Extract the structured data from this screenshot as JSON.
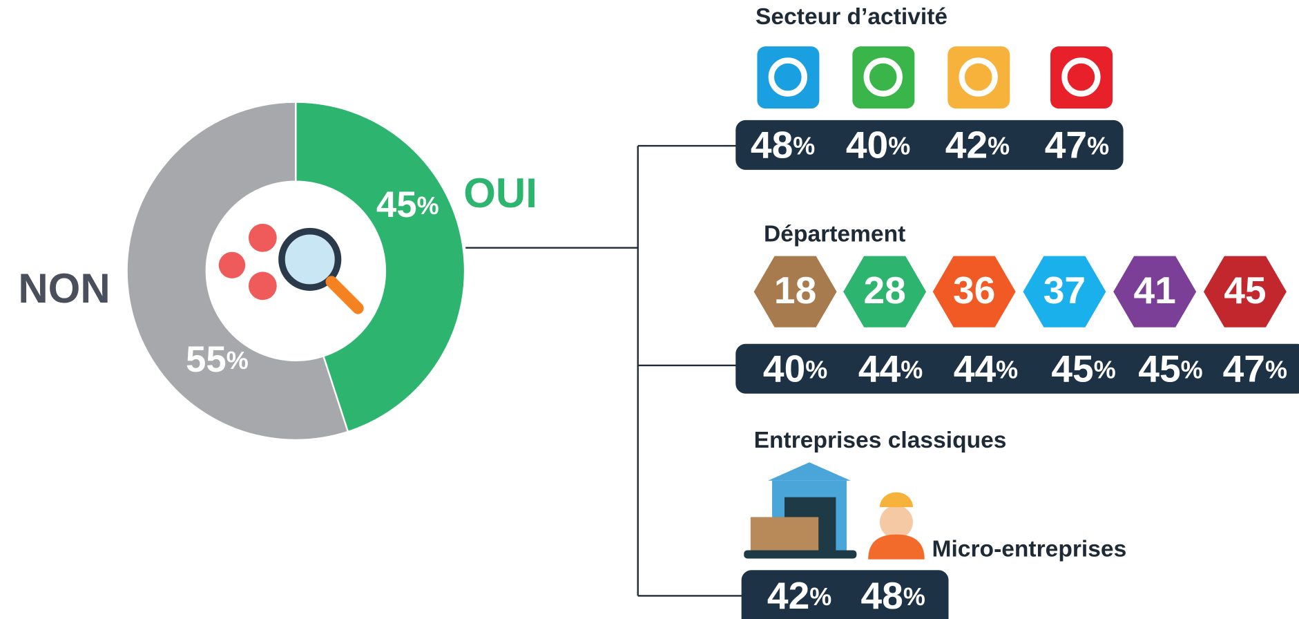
{
  "chart_data": {
    "type": "pie",
    "labels": [
      "OUI",
      "NON"
    ],
    "values": [
      45,
      55
    ],
    "value_labels": [
      "45%",
      "55%"
    ],
    "colors": [
      "#2db56f",
      "#a7a8ab"
    ],
    "label_colors": [
      "#2db56f",
      "#4a4f5c"
    ]
  },
  "sector": {
    "title": "Secteur d’activité",
    "colors": [
      "#1a9fe0",
      "#3ab54a",
      "#f7b23b",
      "#e8202a"
    ],
    "values": [
      "48%",
      "40%",
      "42%",
      "47%"
    ]
  },
  "department": {
    "title": "Département",
    "codes": [
      "18",
      "28",
      "36",
      "37",
      "41",
      "45"
    ],
    "colors": [
      "#a87b4f",
      "#2db56f",
      "#f15a24",
      "#1ab0ec",
      "#7b3f98",
      "#c1272d"
    ],
    "values": [
      "40%",
      "44%",
      "44%",
      "45%",
      "45%",
      "47%"
    ]
  },
  "companies": {
    "title": "Entreprises classiques",
    "subtitle": "Micro-entreprises",
    "values": [
      "42%",
      "48%"
    ]
  }
}
